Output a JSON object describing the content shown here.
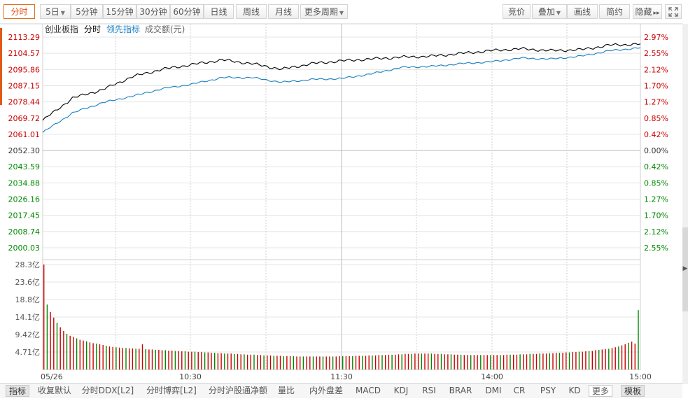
{
  "toolbar": {
    "left": [
      {
        "label": "分时",
        "caret": false,
        "active": true
      },
      {
        "label": "5日",
        "caret": true,
        "active": false
      },
      {
        "label": "5分钟",
        "caret": false,
        "active": false
      },
      {
        "label": "15分钟",
        "caret": false,
        "active": false
      },
      {
        "label": "30分钟",
        "caret": false,
        "active": false
      },
      {
        "label": "60分钟",
        "caret": false,
        "active": false
      },
      {
        "label": "日线",
        "caret": false,
        "active": false
      },
      {
        "label": "周线",
        "caret": false,
        "active": false
      },
      {
        "label": "月线",
        "caret": false,
        "active": false
      },
      {
        "label": "更多周期",
        "caret": true,
        "active": false
      }
    ],
    "right": [
      {
        "label": "竞价",
        "caret": false
      },
      {
        "label": "叠加",
        "caret": true
      },
      {
        "label": "画线",
        "caret": false
      },
      {
        "label": "简约",
        "caret": false
      },
      {
        "label": "隐藏",
        "caret": false
      }
    ],
    "hide_arrows": "▸▸",
    "fullscreen_icon": "fullscreen-icon"
  },
  "legend": {
    "index_name": "创业板指",
    "mode": "分时",
    "leading": "领先指标",
    "volume": "成交额(元)"
  },
  "colors": {
    "price_line": "#000000",
    "leading_line": "#1a7fc0",
    "up": "#cc0000",
    "down": "#008800",
    "grid": "#e4e4e4",
    "axis": "#999999",
    "accent": "#e05a1a"
  },
  "chart_data": {
    "type": "line",
    "title": "",
    "prev_close": 2052.3,
    "price_axis": {
      "ylim": [
        2000.03,
        2113.29
      ],
      "tick_labels": [
        "2113.29",
        "2104.57",
        "2095.86",
        "2087.15",
        "2078.44",
        "2069.72",
        "2061.01",
        "2052.30",
        "2043.59",
        "2034.88",
        "2026.16",
        "2017.45",
        "2008.74",
        "2000.03"
      ],
      "percent_labels": [
        "2.97%",
        "2.55%",
        "2.12%",
        "1.70%",
        "1.27%",
        "0.85%",
        "0.42%",
        "0.00%",
        "0.42%",
        "0.85%",
        "1.27%",
        "1.70%",
        "2.12%",
        "2.55%"
      ]
    },
    "x_labels": [
      "05/26",
      "10:30",
      "11:30",
      "14:00",
      "15:00"
    ],
    "series": [
      {
        "role": "price",
        "values": [
          2068.5,
          2080.5,
          2085.0,
          2092.0,
          2096.0,
          2098.5,
          2101.0,
          2099.0,
          2096.0,
          2099.0,
          2100.5,
          2101.5,
          2102.5,
          2103.0,
          2104.5,
          2106.0,
          2107.0,
          2106.0,
          2106.5,
          2109.0,
          2109.5
        ]
      },
      {
        "role": "leading",
        "values": [
          2062.0,
          2072.5,
          2078.0,
          2081.5,
          2085.5,
          2088.0,
          2091.5,
          2091.5,
          2089.0,
          2090.5,
          2091.0,
          2093.5,
          2097.0,
          2097.5,
          2099.0,
          2100.0,
          2102.0,
          2101.5,
          2103.0,
          2106.0,
          2107.5
        ]
      }
    ],
    "volume": {
      "unit": "亿",
      "ylim": [
        0,
        28.3
      ],
      "tick_labels": [
        "28.3亿",
        "23.6亿",
        "18.8亿",
        "14.1亿",
        "9.42亿",
        "4.71亿"
      ],
      "values": [
        28.3,
        17.5,
        15.5,
        14.0,
        12.6,
        11.4,
        10.4,
        9.6,
        9.1,
        8.8,
        8.4,
        8.0,
        7.8,
        7.6,
        7.3,
        7.1,
        7.0,
        6.8,
        6.6,
        6.4,
        6.2,
        6.1,
        6.0,
        5.9,
        5.8,
        5.8,
        5.7,
        5.7,
        5.6,
        5.6,
        6.8,
        5.5,
        5.4,
        5.4,
        5.3,
        5.3,
        5.2,
        5.2,
        5.1,
        5.1,
        5.0,
        5.0,
        4.9,
        4.9,
        4.8,
        4.8,
        4.8,
        4.7,
        4.7,
        4.6,
        4.6,
        4.5,
        4.5,
        4.4,
        4.4,
        4.3,
        4.3,
        4.3,
        4.2,
        4.2,
        4.1,
        4.1,
        4.0,
        4.0,
        4.0,
        3.9,
        3.9,
        3.8,
        3.8,
        3.8,
        3.7,
        3.7,
        3.7,
        3.6,
        3.6,
        3.6,
        3.6,
        3.5,
        3.5,
        3.5,
        3.5,
        3.5,
        3.5,
        3.5,
        3.5,
        3.5,
        3.5,
        3.5,
        3.5,
        3.5,
        3.6,
        3.6,
        3.6,
        3.6,
        3.6,
        3.7,
        3.7,
        3.7,
        3.7,
        3.8,
        3.8,
        3.8,
        3.9,
        3.9,
        3.9,
        4.0,
        4.0,
        4.0,
        4.1,
        4.1,
        4.2,
        4.2,
        4.2,
        4.3,
        4.3,
        4.3,
        4.3,
        4.3,
        4.3,
        4.2,
        4.2,
        4.2,
        4.1,
        4.1,
        4.1,
        4.0,
        4.0,
        4.0,
        3.9,
        3.9,
        3.9,
        3.9,
        3.9,
        3.9,
        3.9,
        3.9,
        3.9,
        3.9,
        3.9,
        3.9,
        3.9,
        4.0,
        4.0,
        4.0,
        4.0,
        4.1,
        4.1,
        4.1,
        4.2,
        4.2,
        4.2,
        4.3,
        4.3,
        4.3,
        4.4,
        4.4,
        4.5,
        4.5,
        4.5,
        4.6,
        4.6,
        4.7,
        4.7,
        4.8,
        4.8,
        4.9,
        5.0,
        5.0,
        5.2,
        5.3,
        5.4,
        5.5,
        5.6,
        5.8,
        6.0,
        6.2,
        6.5,
        6.8,
        7.2,
        7.5,
        7.0,
        16.0
      ]
    }
  },
  "bottombar": [
    {
      "label": "指标",
      "style": "dark"
    },
    {
      "label": "收复默认",
      "style": "plain"
    },
    {
      "label": "分时DDX[L2]",
      "style": "plain"
    },
    {
      "label": "分时博弈[L2]",
      "style": "plain"
    },
    {
      "label": "分时沪股通净额",
      "style": "plain"
    },
    {
      "label": "量比",
      "style": "plain"
    },
    {
      "label": "内外盘差",
      "style": "plain"
    },
    {
      "label": "MACD",
      "style": "plain"
    },
    {
      "label": "KDJ",
      "style": "plain"
    },
    {
      "label": "RSI",
      "style": "plain"
    },
    {
      "label": "BRAR",
      "style": "plain"
    },
    {
      "label": "DMI",
      "style": "plain"
    },
    {
      "label": "CR",
      "style": "plain"
    },
    {
      "label": "PSY",
      "style": "plain"
    },
    {
      "label": "KD",
      "style": "plain"
    },
    {
      "label": "更多",
      "style": "boxed"
    },
    {
      "label": "模板",
      "style": "dark"
    }
  ]
}
